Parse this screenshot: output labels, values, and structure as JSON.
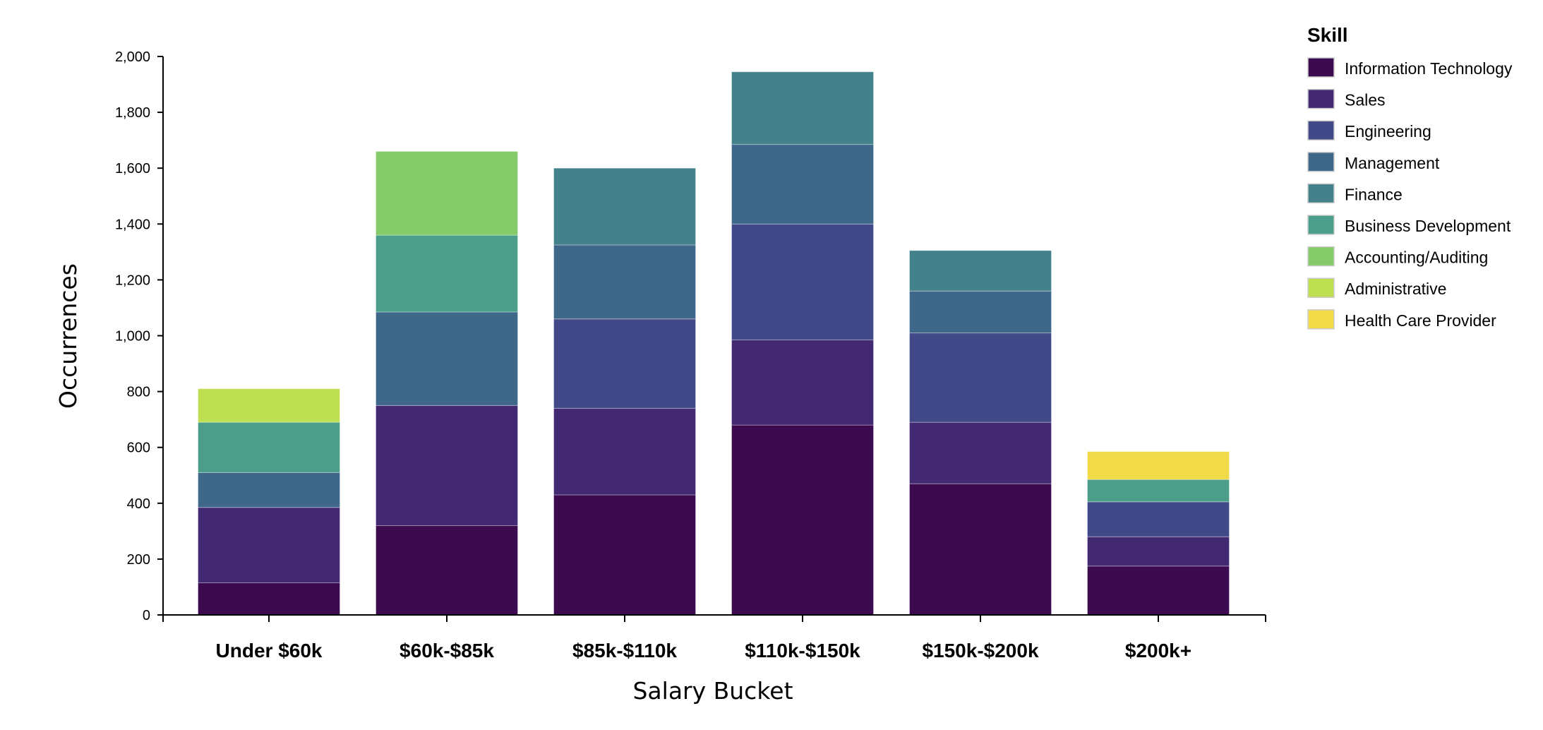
{
  "chart_data": {
    "type": "bar",
    "stacked": true,
    "xlabel": "Salary Bucket",
    "ylabel": "Occurrences",
    "ylim": [
      0,
      2000
    ],
    "yticks": [
      0,
      200,
      400,
      600,
      800,
      1000,
      1200,
      1400,
      1600,
      1800,
      2000
    ],
    "ytick_labels": [
      "0",
      "200",
      "400",
      "600",
      "800",
      "1,000",
      "1,200",
      "1,400",
      "1,600",
      "1,800",
      "2,000"
    ],
    "categories": [
      "Under $60k",
      "$60k-$85k",
      "$85k-$110k",
      "$110k-$150k",
      "$150k-$200k",
      "$200k+"
    ],
    "legend_title": "Skill",
    "legend_position": "top-right",
    "grid": false,
    "series": [
      {
        "name": "Information Technology",
        "color": "#3b0a4f",
        "values": [
          115,
          320,
          430,
          680,
          470,
          175
        ]
      },
      {
        "name": "Sales",
        "color": "#432872",
        "values": [
          270,
          430,
          310,
          305,
          220,
          105
        ]
      },
      {
        "name": "Engineering",
        "color": "#414988",
        "values": [
          0,
          0,
          320,
          415,
          320,
          125
        ]
      },
      {
        "name": "Management",
        "color": "#3e678a",
        "values": [
          125,
          335,
          265,
          285,
          150,
          0
        ]
      },
      {
        "name": "Finance",
        "color": "#43828b",
        "values": [
          0,
          0,
          275,
          260,
          145,
          0
        ]
      },
      {
        "name": "Business Development",
        "color": "#4a9e8a",
        "values": [
          180,
          275,
          0,
          0,
          0,
          80
        ]
      },
      {
        "name": "Accounting/Auditing",
        "color": "#85cb6a",
        "values": [
          0,
          300,
          0,
          0,
          0,
          0
        ]
      },
      {
        "name": "Administrative",
        "color": "#bddf51",
        "values": [
          120,
          0,
          0,
          0,
          0,
          0
        ]
      },
      {
        "name": "Health Care Provider",
        "color": "#f0da48",
        "values": [
          0,
          0,
          0,
          0,
          0,
          100
        ]
      }
    ]
  }
}
